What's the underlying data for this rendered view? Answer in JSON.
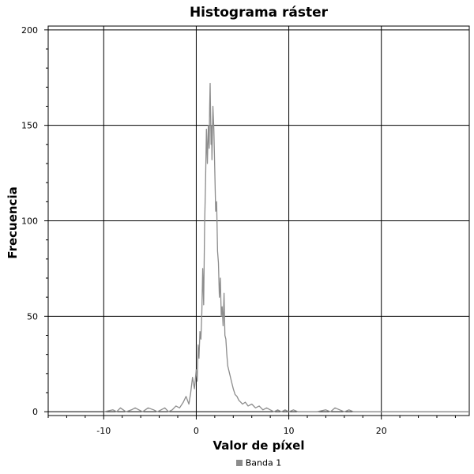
{
  "chart_data": {
    "type": "line",
    "title": "Histograma ráster",
    "xlabel": "Valor de píxel",
    "ylabel": "Frecuencia",
    "xlim": [
      -16,
      29.5
    ],
    "ylim": [
      -2,
      202
    ],
    "xticks": [
      -10,
      0,
      10,
      20
    ],
    "yticks": [
      0,
      50,
      100,
      150,
      200
    ],
    "grid": true,
    "legend_position": "bottom-center",
    "series": [
      {
        "name": "Banda 1",
        "color": "#8c8c8c",
        "x": [
          -10,
          -9,
          -8.6,
          -8.2,
          -7.6,
          -7,
          -6.6,
          -6.2,
          -5.8,
          -5.2,
          -4.6,
          -4.2,
          -3.8,
          -3.4,
          -3,
          -2.6,
          -2.2,
          -1.8,
          -1.4,
          -1.1,
          -0.8,
          -0.6,
          -0.4,
          -0.2,
          0,
          0.1,
          0.2,
          0.3,
          0.4,
          0.5,
          0.6,
          0.7,
          0.8,
          0.9,
          1,
          1.1,
          1.2,
          1.3,
          1.4,
          1.45,
          1.5,
          1.55,
          1.6,
          1.65,
          1.7,
          1.8,
          1.9,
          2,
          2.1,
          2.2,
          2.3,
          2.4,
          2.5,
          2.6,
          2.7,
          2.8,
          2.9,
          3,
          3.1,
          3.2,
          3.3,
          3.4,
          3.6,
          3.8,
          4,
          4.2,
          4.4,
          4.6,
          4.8,
          5,
          5.3,
          5.6,
          6,
          6.4,
          6.8,
          7.2,
          7.6,
          8,
          8.4,
          8.8,
          9.2,
          9.6,
          10,
          10.5,
          11,
          12,
          13,
          14,
          14.5,
          15,
          15.5,
          16,
          16.5,
          17,
          18,
          20,
          25,
          29.5
        ],
        "y": [
          0,
          1,
          0,
          2,
          0,
          1,
          2,
          1,
          0,
          2,
          1,
          0,
          1,
          2,
          0,
          1,
          3,
          2,
          5,
          8,
          4,
          10,
          18,
          12,
          22,
          16,
          35,
          28,
          42,
          38,
          52,
          75,
          56,
          98,
          118,
          148,
          130,
          150,
          138,
          160,
          172,
          155,
          140,
          150,
          132,
          160,
          148,
          126,
          105,
          110,
          84,
          78,
          60,
          70,
          50,
          55,
          45,
          62,
          40,
          38,
          30,
          24,
          20,
          16,
          12,
          9,
          8,
          6,
          5,
          4,
          5,
          3,
          4,
          2,
          3,
          1,
          2,
          1,
          0,
          1,
          0,
          1,
          0,
          1,
          0,
          0,
          0,
          1,
          0,
          2,
          1,
          0,
          1,
          0,
          0,
          0,
          0,
          0
        ]
      }
    ]
  }
}
